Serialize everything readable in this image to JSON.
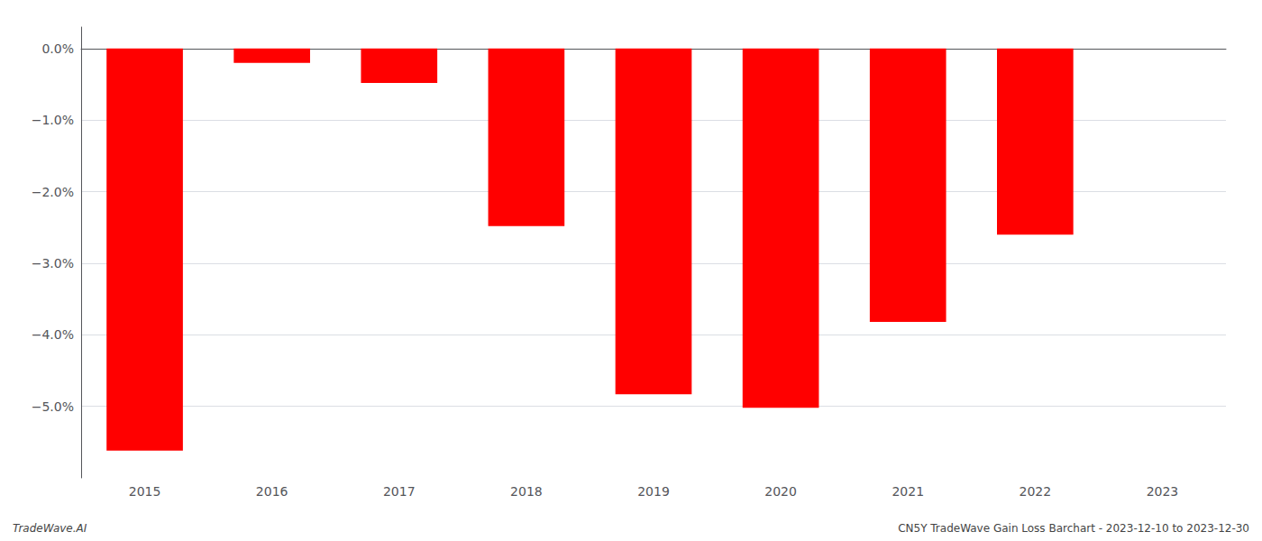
{
  "chart_data": {
    "type": "bar",
    "categories": [
      "2015",
      "2016",
      "2017",
      "2018",
      "2019",
      "2020",
      "2021",
      "2022",
      "2023"
    ],
    "values": [
      -5.62,
      -0.2,
      -0.48,
      -2.48,
      -4.83,
      -5.02,
      -3.82,
      -2.6,
      null
    ],
    "color": "#ff0000",
    "ylim": [
      -6.0,
      0.3
    ],
    "yticks": [
      {
        "value": 0.0,
        "label": "0.0%"
      },
      {
        "value": -1.0,
        "label": "−1.0%"
      },
      {
        "value": -2.0,
        "label": "−2.0%"
      },
      {
        "value": -3.0,
        "label": "−3.0%"
      },
      {
        "value": -4.0,
        "label": "−4.0%"
      },
      {
        "value": -5.0,
        "label": "−5.0%"
      }
    ],
    "grid": true,
    "annotations": [
      "TradeWave.AI",
      "CN5Y TradeWave Gain Loss Barchart - 2023-12-10 to 2023-12-30"
    ]
  }
}
